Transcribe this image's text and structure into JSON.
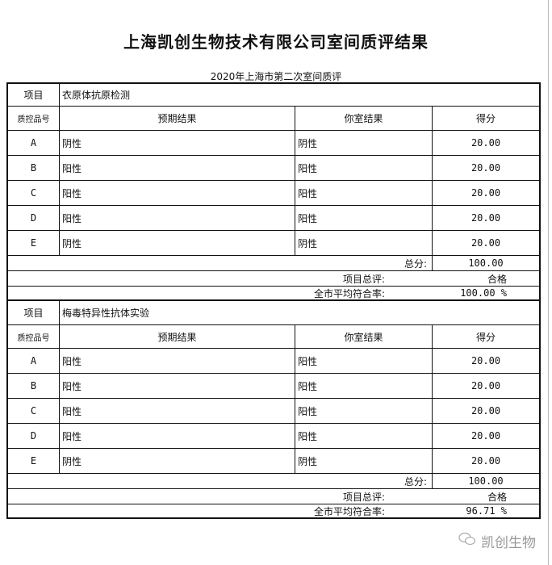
{
  "title": "上海凯创生物技术有限公司室间质评结果",
  "subtitle": "2020年上海市第二次室间质评",
  "labels": {
    "project": "项目",
    "qc_id": "质控品号",
    "expected": "预期结果",
    "yours": "你室结果",
    "score": "得分",
    "total": "总分:",
    "evaluation": "项目总评:",
    "city_rate": "全市平均符合率:"
  },
  "sections": [
    {
      "project": "衣原体抗原检测",
      "rows": [
        {
          "id": "A",
          "expected": "阴性",
          "yours": "阴性",
          "score": "20.00"
        },
        {
          "id": "B",
          "expected": "阳性",
          "yours": "阳性",
          "score": "20.00"
        },
        {
          "id": "C",
          "expected": "阳性",
          "yours": "阳性",
          "score": "20.00"
        },
        {
          "id": "D",
          "expected": "阳性",
          "yours": "阳性",
          "score": "20.00"
        },
        {
          "id": "E",
          "expected": "阴性",
          "yours": "阴性",
          "score": "20.00"
        }
      ],
      "total": "100.00",
      "evaluation": "合格",
      "city_rate": "100.00 %"
    },
    {
      "project": "梅毒特异性抗体实验",
      "rows": [
        {
          "id": "A",
          "expected": "阳性",
          "yours": "阳性",
          "score": "20.00"
        },
        {
          "id": "B",
          "expected": "阳性",
          "yours": "阳性",
          "score": "20.00"
        },
        {
          "id": "C",
          "expected": "阳性",
          "yours": "阳性",
          "score": "20.00"
        },
        {
          "id": "D",
          "expected": "阳性",
          "yours": "阳性",
          "score": "20.00"
        },
        {
          "id": "E",
          "expected": "阴性",
          "yours": "阴性",
          "score": "20.00"
        }
      ],
      "total": "100.00",
      "evaluation": "合格",
      "city_rate": "96.71 %"
    }
  ],
  "watermark": "凯创生物"
}
